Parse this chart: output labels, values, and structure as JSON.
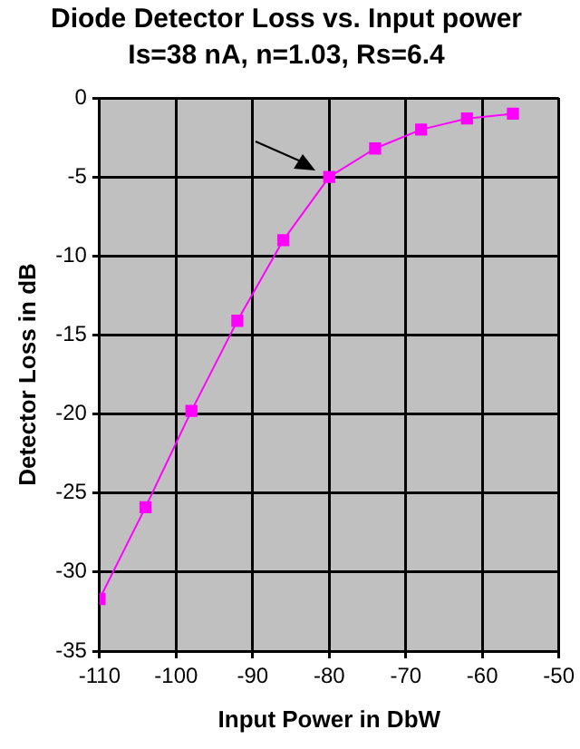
{
  "chart_data": {
    "type": "line",
    "title": "Diode Detector Loss vs. Input power",
    "subtitle": "Is=38 nA, n=1.03, Rs=6.4",
    "xlabel": "Input Power in DbW",
    "ylabel": "Detector Loss in dB",
    "x": [
      -110,
      -104,
      -98,
      -92,
      -86,
      -80,
      -74,
      -68,
      -62,
      -56
    ],
    "series": [
      {
        "color": "#ff00ff",
        "values": [
          -31.7,
          -25.9,
          -19.8,
          -14.1,
          -9.0,
          -5.0,
          -3.2,
          -2.0,
          -1.3,
          -1.0
        ]
      }
    ],
    "xlim": [
      -110,
      -50
    ],
    "xticks": [
      -110,
      -100,
      -90,
      -80,
      -70,
      -60,
      -50
    ],
    "ylim": [
      -35,
      0
    ],
    "yticks": [
      -35,
      -30,
      -25,
      -20,
      -15,
      -10,
      -5,
      0
    ],
    "grid": true,
    "legend": false,
    "marker": "square",
    "line_style": "solid"
  }
}
